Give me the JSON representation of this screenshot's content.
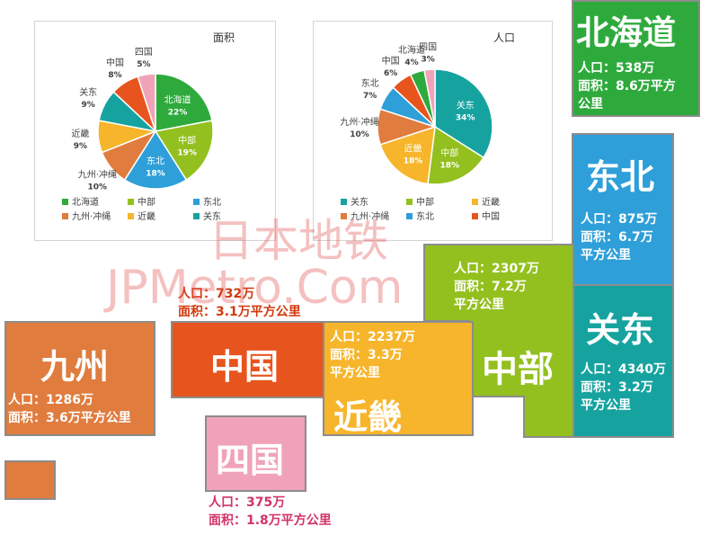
{
  "chart_data": [
    {
      "type": "pie",
      "title": "面积",
      "unit": "%",
      "slices": [
        {
          "label": "北海道",
          "value": 22,
          "pct": "22%",
          "color": "#2eaa3c"
        },
        {
          "label": "中部",
          "value": 19,
          "pct": "19%",
          "color": "#93c01f"
        },
        {
          "label": "东北",
          "value": 18,
          "pct": "18%",
          "color": "#2e9fd8"
        },
        {
          "label": "九州·冲绳",
          "value": 10,
          "pct": "10%",
          "color": "#e07c3e"
        },
        {
          "label": "近畿",
          "value": 9,
          "pct": "9%",
          "color": "#f6b52b"
        },
        {
          "label": "关东",
          "value": 9,
          "pct": "9%",
          "color": "#16a3a0"
        },
        {
          "label": "中国",
          "value": 8,
          "pct": "8%",
          "color": "#e8541e"
        },
        {
          "label": "四国",
          "value": 5,
          "pct": "5%",
          "color": "#f0a3b8"
        }
      ],
      "legend": [
        "北海道",
        "中部",
        "东北",
        "九州·冲绳",
        "近畿",
        "关东"
      ],
      "legend_position": "bottom"
    },
    {
      "type": "pie",
      "title": "人口",
      "unit": "%",
      "slices": [
        {
          "label": "关东",
          "value": 34,
          "pct": "34%",
          "color": "#16a3a0"
        },
        {
          "label": "中部",
          "value": 18,
          "pct": "18%",
          "color": "#93c01f"
        },
        {
          "label": "近畿",
          "value": 18,
          "pct": "18%",
          "color": "#f6b52b"
        },
        {
          "label": "九州·冲绳",
          "value": 10,
          "pct": "10%",
          "color": "#e07c3e"
        },
        {
          "label": "东北",
          "value": 7,
          "pct": "7%",
          "color": "#2e9fd8"
        },
        {
          "label": "中国",
          "value": 6,
          "pct": "6%",
          "color": "#e8541e"
        },
        {
          "label": "北海道",
          "value": 4,
          "pct": "4%",
          "color": "#2eaa3c"
        },
        {
          "label": "四国",
          "value": 3,
          "pct": "3%",
          "color": "#f0a3b8"
        }
      ],
      "legend": [
        "关东",
        "中部",
        "近畿",
        "九州·冲绳",
        "东北",
        "中国"
      ],
      "legend_position": "bottom"
    }
  ],
  "regions": {
    "hokkaido": {
      "name": "北海道",
      "population": "人口：538万",
      "area": "面积：8.6万平方",
      "area2": "公里",
      "color": "#2eaa3c"
    },
    "tohoku": {
      "name": "东北",
      "population": "人口：875万",
      "area": "面积：6.7万",
      "area2": "平方公里",
      "color": "#2e9fd8"
    },
    "kanto": {
      "name": "关东",
      "population": "人口：4340万",
      "area": "面积：3.2万",
      "area2": "平方公里",
      "color": "#16a3a0"
    },
    "chubu": {
      "name": "中部",
      "population": "人口：2307万",
      "area": "面积：7.2万",
      "area2": "平方公里",
      "color": "#93c01f"
    },
    "kinki": {
      "name": "近畿",
      "population": "人口：2237万",
      "area": "面积：3.3万",
      "area2": "平方公里",
      "color": "#f6b52b"
    },
    "chugoku": {
      "name": "中国",
      "population": "人口：732万",
      "area": "面积：3.1万平方公里",
      "color": "#e8541e"
    },
    "shikoku": {
      "name": "四国",
      "population": "人口：375万",
      "area": "面积：1.8万平方公里",
      "color": "#f0a3b8",
      "text_color": "#d2336b"
    },
    "kyushu": {
      "name": "九州",
      "population": "人口：1286万",
      "area": "面积：3.6万平方公里",
      "color": "#e07c3e"
    },
    "okinawa": {
      "color": "#e07c3e"
    }
  },
  "watermark": {
    "line1": "日本地铁",
    "line2": "JPMetro.Com"
  }
}
